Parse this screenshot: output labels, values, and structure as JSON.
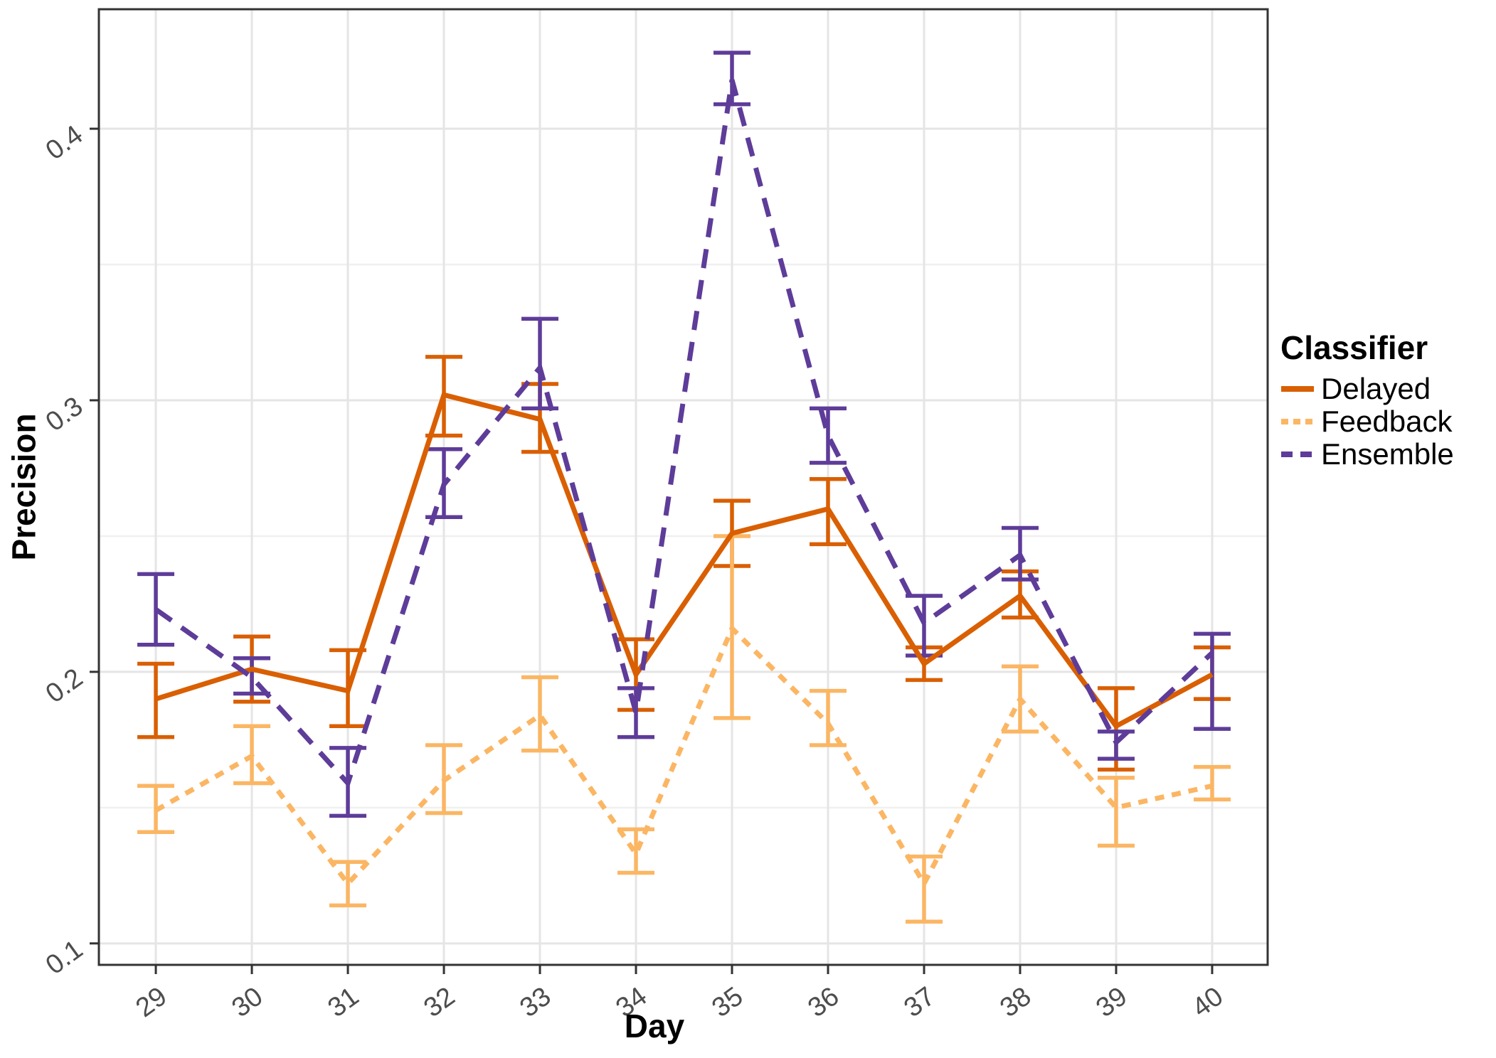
{
  "chart_data": {
    "type": "line",
    "title": "",
    "xlabel": "Day",
    "ylabel": "Precision",
    "x": [
      29,
      30,
      31,
      32,
      33,
      34,
      35,
      36,
      37,
      38,
      39,
      40
    ],
    "xlim": [
      28.407,
      40.578
    ],
    "ylim": [
      0.0921,
      0.444
    ],
    "xticks": [
      29,
      30,
      31,
      32,
      33,
      34,
      35,
      36,
      37,
      38,
      39,
      40
    ],
    "xtick_labels": [
      "29",
      "30",
      "31",
      "32",
      "33",
      "34",
      "35",
      "36",
      "37",
      "38",
      "39",
      "40"
    ],
    "yticks": [
      0.1,
      0.2,
      0.3,
      0.4
    ],
    "ytick_labels": [
      "0.1",
      "0.2",
      "0.3",
      "0.4"
    ],
    "minor_yticks": [
      0.15,
      0.25,
      0.35
    ],
    "grid": "major-x, major-y, minor-y",
    "error_bars": true,
    "legend": {
      "title": "Classifier",
      "position": "right",
      "entries": [
        "Delayed",
        "Feedback",
        "Ensemble"
      ]
    },
    "series": [
      {
        "name": "Delayed",
        "color": "#D95F02",
        "line_style": "solid",
        "y": [
          0.19,
          0.201,
          0.193,
          0.302,
          0.293,
          0.199,
          0.251,
          0.26,
          0.203,
          0.228,
          0.18,
          0.199
        ],
        "ymin": [
          0.176,
          0.189,
          0.18,
          0.287,
          0.281,
          0.186,
          0.239,
          0.247,
          0.197,
          0.22,
          0.164,
          0.19
        ],
        "ymax": [
          0.203,
          0.213,
          0.208,
          0.316,
          0.306,
          0.212,
          0.263,
          0.271,
          0.209,
          0.237,
          0.194,
          0.209
        ]
      },
      {
        "name": "Feedback",
        "color": "#FBB664",
        "line_style": "dotted",
        "y": [
          0.149,
          0.169,
          0.122,
          0.16,
          0.184,
          0.133,
          0.216,
          0.181,
          0.122,
          0.19,
          0.15,
          0.158
        ],
        "ymin": [
          0.141,
          0.159,
          0.114,
          0.148,
          0.171,
          0.126,
          0.183,
          0.173,
          0.108,
          0.178,
          0.136,
          0.153
        ],
        "ymax": [
          0.158,
          0.18,
          0.13,
          0.173,
          0.198,
          0.142,
          0.25,
          0.193,
          0.132,
          0.202,
          0.161,
          0.165
        ]
      },
      {
        "name": "Ensemble",
        "color": "#5E3C99",
        "line_style": "dashed",
        "y": [
          0.223,
          0.198,
          0.159,
          0.269,
          0.312,
          0.185,
          0.418,
          0.287,
          0.218,
          0.243,
          0.174,
          0.207
        ],
        "ymin": [
          0.21,
          0.192,
          0.147,
          0.257,
          0.297,
          0.176,
          0.409,
          0.277,
          0.206,
          0.234,
          0.168,
          0.179
        ],
        "ymax": [
          0.236,
          0.205,
          0.172,
          0.282,
          0.33,
          0.194,
          0.428,
          0.297,
          0.228,
          0.253,
          0.178,
          0.214
        ]
      }
    ]
  },
  "panel": {
    "border_color": "#333333",
    "grid_major_color": "#E5E5E5",
    "grid_minor_color": "#F0F0F0",
    "tick_color": "#333333",
    "tick_label_color": "#4D4D4D"
  }
}
